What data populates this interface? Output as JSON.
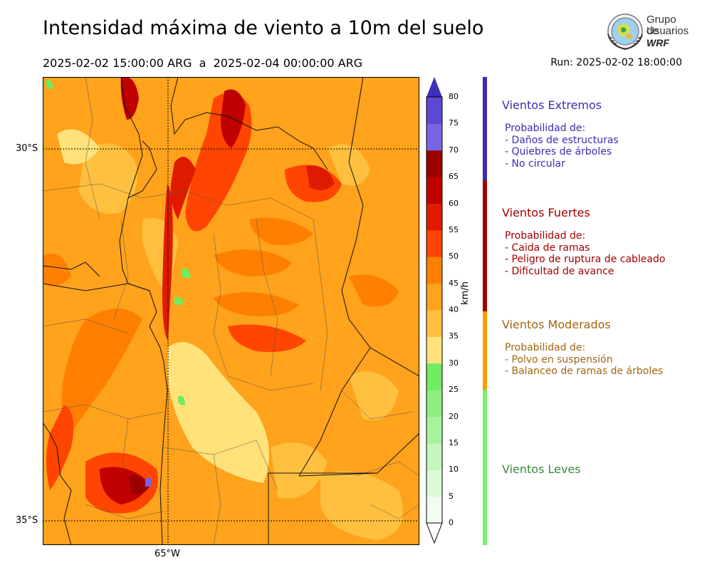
{
  "header": {
    "title": "Intensidad máxima de viento a 10m del suelo",
    "period": "2025-02-02 15:00:00 ARG  a  2025-02-04 00:00:00 ARG",
    "run": "Run: 2025-02-02 18:00:00"
  },
  "logo": {
    "line1": "Grupo de",
    "line2": "Usuarios",
    "line3": "WRF"
  },
  "map": {
    "lat_labels": [
      "30°S",
      "35°S"
    ],
    "lon_labels": [
      "65°W"
    ]
  },
  "colorbar": {
    "unit": "km/h",
    "ticks": [
      "0",
      "5",
      "10",
      "15",
      "20",
      "25",
      "30",
      "35",
      "40",
      "45",
      "50",
      "55",
      "60",
      "65",
      "70",
      "75",
      "80"
    ],
    "colors": [
      "#f1fdf0",
      "#defbd9",
      "#c3f7bb",
      "#a7f39c",
      "#8cef7e",
      "#71eb60",
      "#ffe27a",
      "#ffc040",
      "#ffa21c",
      "#ff8000",
      "#ff4500",
      "#e01a00",
      "#c00000",
      "#9c0000",
      "#7764e4",
      "#5b48d4",
      "#3e2ebc"
    ]
  },
  "categories": [
    {
      "title": "Vientos Extremos",
      "color": "#3a2db0",
      "lines": [
        " Probabilidad de:",
        " - Daños de estructuras",
        " - Quiebres de árboles",
        " - No circular"
      ]
    },
    {
      "title": "Vientos Fuertes",
      "color": "#a30000",
      "lines": [
        " Probabilidad de:",
        " - Caida de ramas",
        " - Peligro de ruptura de cableado",
        " - Dificultad de avance"
      ]
    },
    {
      "title": "Vientos Moderados",
      "color": "#a06810",
      "lines": [
        " Probabilidad de:",
        " - Polvo en suspensión",
        " - Balanceo de ramas de árboles"
      ]
    },
    {
      "title": "Vientos Leves",
      "color": "#3a8a3a",
      "lines": []
    }
  ],
  "category_bar_colors": [
    "#3a2db0",
    "#a30000",
    "#ff9a00",
    "#78f070"
  ]
}
